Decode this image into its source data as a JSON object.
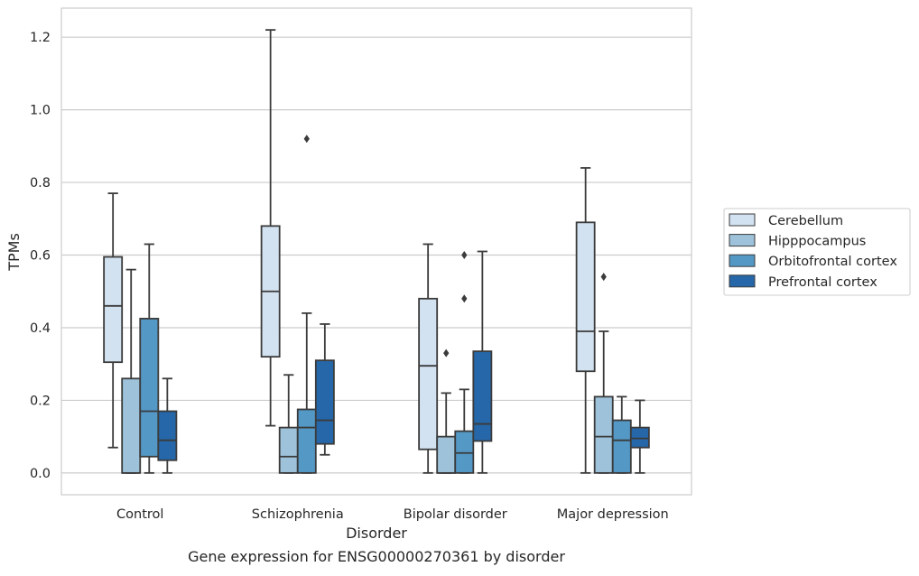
{
  "chart_data": {
    "type": "box",
    "title": "",
    "caption": "Gene expression for ENSG00000270361 by disorder",
    "xlabel": "Disorder",
    "ylabel": "TPMs",
    "categories": [
      "Control",
      "Schizophrenia",
      "Bipolar disorder",
      "Major depression"
    ],
    "ylim": [
      -0.06,
      1.28
    ],
    "yticks": [
      "0.0",
      "0.2",
      "0.4",
      "0.6",
      "0.8",
      "1.0",
      "1.2"
    ],
    "grid": "horizontal",
    "legend_position": "right",
    "series": [
      {
        "name": "Cerebellum",
        "color": "#d3e2f1",
        "boxes": [
          {
            "whislo": 0.07,
            "q1": 0.305,
            "med": 0.46,
            "q3": 0.595,
            "whishi": 0.77,
            "fliers": []
          },
          {
            "whislo": 0.13,
            "q1": 0.32,
            "med": 0.5,
            "q3": 0.68,
            "whishi": 1.22,
            "fliers": []
          },
          {
            "whislo": 0.0,
            "q1": 0.065,
            "med": 0.295,
            "q3": 0.48,
            "whishi": 0.63,
            "fliers": []
          },
          {
            "whislo": 0.0,
            "q1": 0.28,
            "med": 0.39,
            "q3": 0.69,
            "whishi": 0.84,
            "fliers": []
          }
        ]
      },
      {
        "name": "Hipppocampus",
        "color": "#9dc2da",
        "boxes": [
          {
            "whislo": 0.0,
            "q1": 0.0,
            "med": 0.0,
            "q3": 0.26,
            "whishi": 0.56,
            "fliers": []
          },
          {
            "whislo": 0.0,
            "q1": 0.0,
            "med": 0.045,
            "q3": 0.125,
            "whishi": 0.27,
            "fliers": []
          },
          {
            "whislo": 0.0,
            "q1": 0.0,
            "med": 0.0,
            "q3": 0.1,
            "whishi": 0.22,
            "fliers": [
              0.33
            ]
          },
          {
            "whislo": 0.0,
            "q1": 0.0,
            "med": 0.1,
            "q3": 0.21,
            "whishi": 0.39,
            "fliers": [
              0.54
            ]
          }
        ]
      },
      {
        "name": "Orbitofrontal cortex",
        "color": "#5498c6",
        "boxes": [
          {
            "whislo": 0.0,
            "q1": 0.045,
            "med": 0.17,
            "q3": 0.425,
            "whishi": 0.63,
            "fliers": []
          },
          {
            "whislo": 0.0,
            "q1": 0.0,
            "med": 0.125,
            "q3": 0.175,
            "whishi": 0.44,
            "fliers": [
              0.92
            ]
          },
          {
            "whislo": 0.0,
            "q1": 0.0,
            "med": 0.055,
            "q3": 0.115,
            "whishi": 0.23,
            "fliers": [
              0.48,
              0.6
            ]
          },
          {
            "whislo": 0.0,
            "q1": 0.0,
            "med": 0.09,
            "q3": 0.145,
            "whishi": 0.21,
            "fliers": []
          }
        ]
      },
      {
        "name": "Prefrontal cortex",
        "color": "#2567a8",
        "boxes": [
          {
            "whislo": 0.0,
            "q1": 0.035,
            "med": 0.09,
            "q3": 0.17,
            "whishi": 0.26,
            "fliers": []
          },
          {
            "whislo": 0.05,
            "q1": 0.08,
            "med": 0.145,
            "q3": 0.31,
            "whishi": 0.41,
            "fliers": []
          },
          {
            "whislo": 0.0,
            "q1": 0.088,
            "med": 0.135,
            "q3": 0.335,
            "whishi": 0.61,
            "fliers": []
          },
          {
            "whislo": 0.0,
            "q1": 0.07,
            "med": 0.095,
            "q3": 0.125,
            "whishi": 0.2,
            "fliers": []
          }
        ]
      }
    ]
  }
}
